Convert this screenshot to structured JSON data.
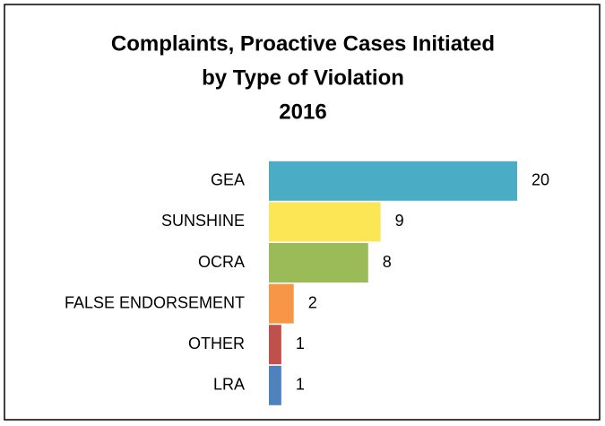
{
  "chart_data": {
    "type": "bar",
    "orientation": "horizontal",
    "title": [
      "Complaints, Proactive Cases Initiated",
      "by Type of Violation",
      "2016"
    ],
    "categories": [
      "GEA",
      "SUNSHINE",
      "OCRA",
      "FALSE ENDORSEMENT",
      "OTHER",
      "LRA"
    ],
    "values": [
      20,
      9,
      8,
      2,
      1,
      1
    ],
    "colors": [
      "#4bacc6",
      "#fbe756",
      "#9bbb59",
      "#f79646",
      "#c0504d",
      "#4f81bd"
    ]
  }
}
